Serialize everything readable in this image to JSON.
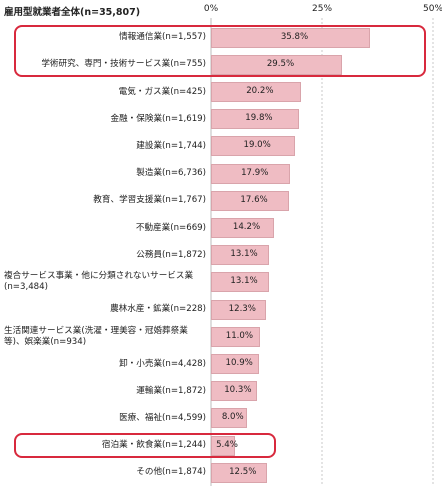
{
  "chart_data": {
    "type": "bar",
    "orientation": "horizontal",
    "title": "雇用型就業者全体(n=35,807)",
    "xlim": [
      0,
      50
    ],
    "xticks": [
      "0%",
      "25%",
      "50%"
    ],
    "categories": [
      "情報通信業(n=1,557)",
      "学術研究、専門・技術サービス業(n=755)",
      "電気・ガス業(n=425)",
      "金融・保険業(n=1,619)",
      "建設業(n=1,744)",
      "製造業(n=6,736)",
      "教育、学習支援業(n=1,767)",
      "不動産業(n=669)",
      "公務員(n=1,872)",
      "複合サービス事業・他に分類されないサービス業\n(n=3,484)",
      "農林水産・鉱業(n=228)",
      "生活関連サービス業(洗濯・理美容・冠婚葬祭業\n等)、娯楽業(n=934)",
      "卸・小売業(n=4,428)",
      "運輸業(n=1,872)",
      "医療、福祉(n=4,599)",
      "宿泊業・飲食業(n=1,244)",
      "その他(n=1,874)"
    ],
    "values": [
      35.8,
      29.5,
      20.2,
      19.8,
      19.0,
      17.9,
      17.6,
      14.2,
      13.1,
      13.1,
      12.3,
      11.0,
      10.9,
      10.3,
      8.0,
      5.4,
      12.5
    ],
    "value_labels": [
      "35.8%",
      "29.5%",
      "20.2%",
      "19.8%",
      "19.0%",
      "17.9%",
      "17.6%",
      "14.2%",
      "13.1%",
      "13.1%",
      "12.3%",
      "11.0%",
      "10.9%",
      "10.3%",
      "8.0%",
      "5.4%",
      "12.5%"
    ],
    "highlighted_categories": [
      0,
      1,
      15
    ],
    "colors": {
      "bar": "#efbcc3",
      "bar_border": "#d9a4ab",
      "highlight": "#d8293d",
      "grid": "#bdbdbd"
    }
  }
}
